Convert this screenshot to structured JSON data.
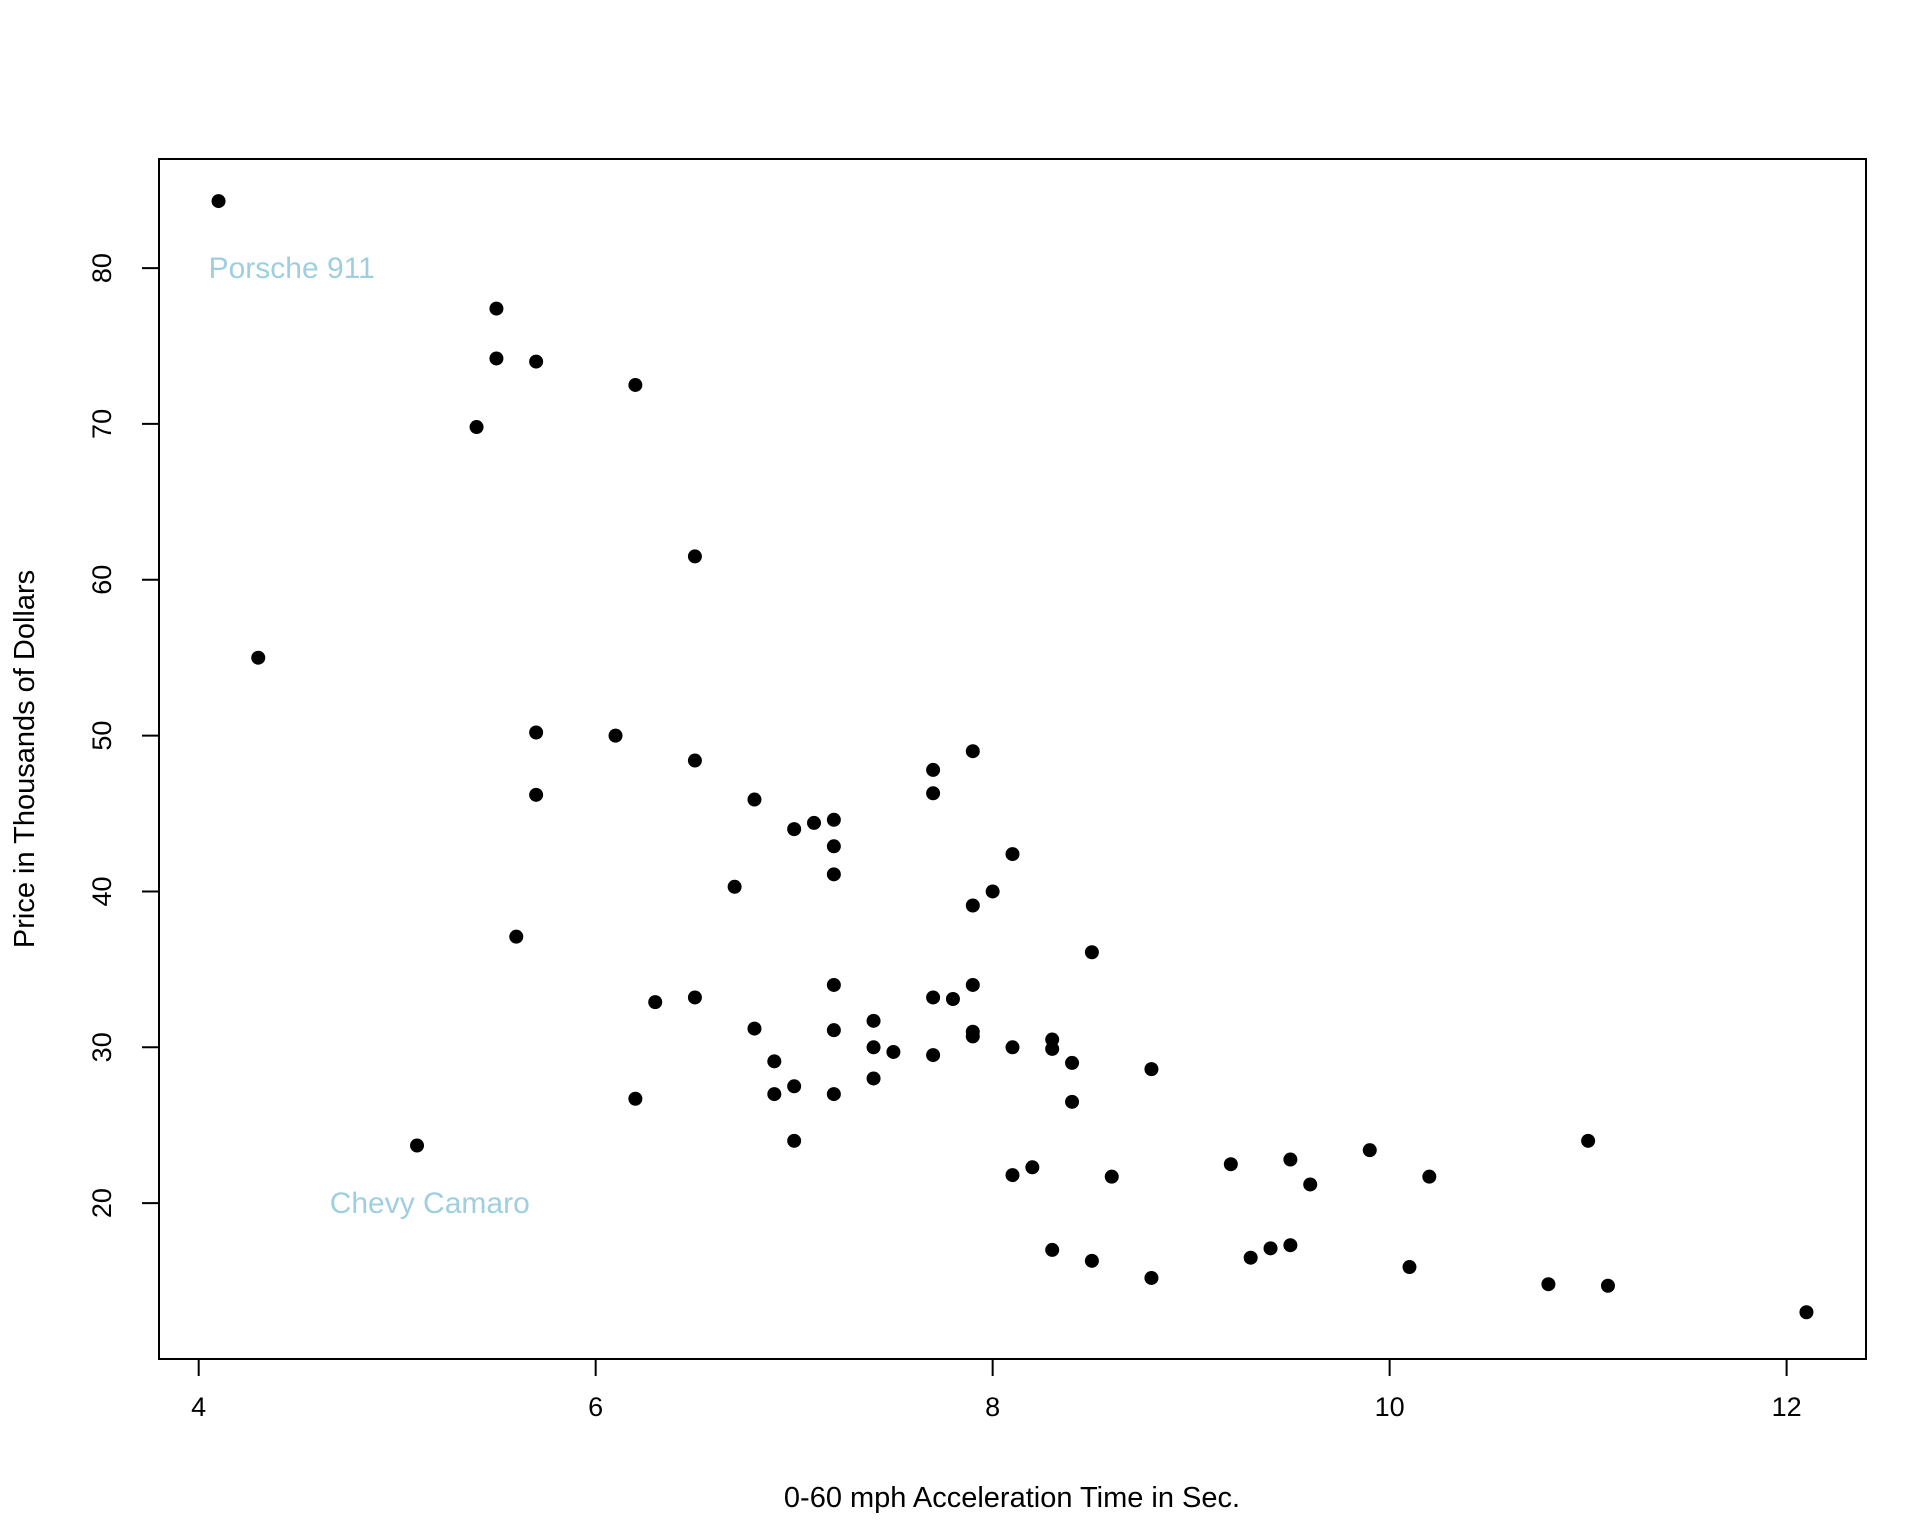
{
  "chart_data": {
    "type": "scatter",
    "title": "",
    "xlabel": "0-60 mph Acceleration Time in Sec.",
    "ylabel": "Price in Thousands of Dollars",
    "xlim": [
      3.8,
      12.4
    ],
    "ylim": [
      10,
      87
    ],
    "x_ticks": [
      4,
      6,
      8,
      10,
      12
    ],
    "y_ticks": [
      20,
      30,
      40,
      50,
      60,
      70,
      80
    ],
    "grid": false,
    "legend": "none",
    "point_color": "#000000",
    "annotation_color": "#9ecfe0",
    "annotations": [
      {
        "text": "Porsche 911",
        "x": 4.05,
        "y": 80
      },
      {
        "text": "Chevy Camaro",
        "x": 4.66,
        "y": 20
      }
    ],
    "points": [
      {
        "x": 4.1,
        "y": 84.3
      },
      {
        "x": 4.3,
        "y": 55.0
      },
      {
        "x": 5.1,
        "y": 23.7
      },
      {
        "x": 5.4,
        "y": 69.8
      },
      {
        "x": 5.5,
        "y": 77.4
      },
      {
        "x": 5.5,
        "y": 74.2
      },
      {
        "x": 5.6,
        "y": 37.1
      },
      {
        "x": 5.7,
        "y": 74.0
      },
      {
        "x": 5.7,
        "y": 50.2
      },
      {
        "x": 5.7,
        "y": 46.2
      },
      {
        "x": 6.1,
        "y": 50.0
      },
      {
        "x": 6.2,
        "y": 72.5
      },
      {
        "x": 6.2,
        "y": 26.7
      },
      {
        "x": 6.3,
        "y": 32.9
      },
      {
        "x": 6.5,
        "y": 61.5
      },
      {
        "x": 6.5,
        "y": 48.4
      },
      {
        "x": 6.5,
        "y": 33.2
      },
      {
        "x": 6.7,
        "y": 40.3
      },
      {
        "x": 6.8,
        "y": 45.9
      },
      {
        "x": 6.8,
        "y": 31.2
      },
      {
        "x": 6.9,
        "y": 29.1
      },
      {
        "x": 6.9,
        "y": 27.0
      },
      {
        "x": 7.0,
        "y": 44.0
      },
      {
        "x": 7.0,
        "y": 27.5
      },
      {
        "x": 7.0,
        "y": 24.0
      },
      {
        "x": 7.1,
        "y": 44.4
      },
      {
        "x": 7.2,
        "y": 44.6
      },
      {
        "x": 7.2,
        "y": 42.9
      },
      {
        "x": 7.2,
        "y": 41.1
      },
      {
        "x": 7.2,
        "y": 34.0
      },
      {
        "x": 7.2,
        "y": 31.1
      },
      {
        "x": 7.2,
        "y": 27.0
      },
      {
        "x": 7.4,
        "y": 31.7
      },
      {
        "x": 7.4,
        "y": 30.0
      },
      {
        "x": 7.4,
        "y": 28.0
      },
      {
        "x": 7.5,
        "y": 29.7
      },
      {
        "x": 7.7,
        "y": 47.8
      },
      {
        "x": 7.7,
        "y": 46.3
      },
      {
        "x": 7.7,
        "y": 33.2
      },
      {
        "x": 7.7,
        "y": 29.5
      },
      {
        "x": 7.8,
        "y": 33.1
      },
      {
        "x": 7.9,
        "y": 49.0
      },
      {
        "x": 7.9,
        "y": 39.1
      },
      {
        "x": 7.9,
        "y": 34.0
      },
      {
        "x": 7.9,
        "y": 31.0
      },
      {
        "x": 7.9,
        "y": 30.7
      },
      {
        "x": 8.0,
        "y": 40.0
      },
      {
        "x": 8.1,
        "y": 42.4
      },
      {
        "x": 8.1,
        "y": 30.0
      },
      {
        "x": 8.1,
        "y": 21.8
      },
      {
        "x": 8.2,
        "y": 22.3
      },
      {
        "x": 8.3,
        "y": 30.5
      },
      {
        "x": 8.3,
        "y": 29.9
      },
      {
        "x": 8.3,
        "y": 17.0
      },
      {
        "x": 8.4,
        "y": 29.0
      },
      {
        "x": 8.4,
        "y": 26.5
      },
      {
        "x": 8.5,
        "y": 36.1
      },
      {
        "x": 8.5,
        "y": 16.3
      },
      {
        "x": 8.6,
        "y": 21.7
      },
      {
        "x": 8.8,
        "y": 28.6
      },
      {
        "x": 8.8,
        "y": 15.2
      },
      {
        "x": 9.2,
        "y": 22.5
      },
      {
        "x": 9.3,
        "y": 16.5
      },
      {
        "x": 9.4,
        "y": 17.1
      },
      {
        "x": 9.5,
        "y": 22.8
      },
      {
        "x": 9.5,
        "y": 17.3
      },
      {
        "x": 9.6,
        "y": 21.2
      },
      {
        "x": 9.9,
        "y": 23.4
      },
      {
        "x": 10.1,
        "y": 15.9
      },
      {
        "x": 10.2,
        "y": 21.7
      },
      {
        "x": 10.8,
        "y": 14.8
      },
      {
        "x": 11.0,
        "y": 24.0
      },
      {
        "x": 11.1,
        "y": 14.7
      },
      {
        "x": 12.1,
        "y": 13.0
      }
    ]
  }
}
